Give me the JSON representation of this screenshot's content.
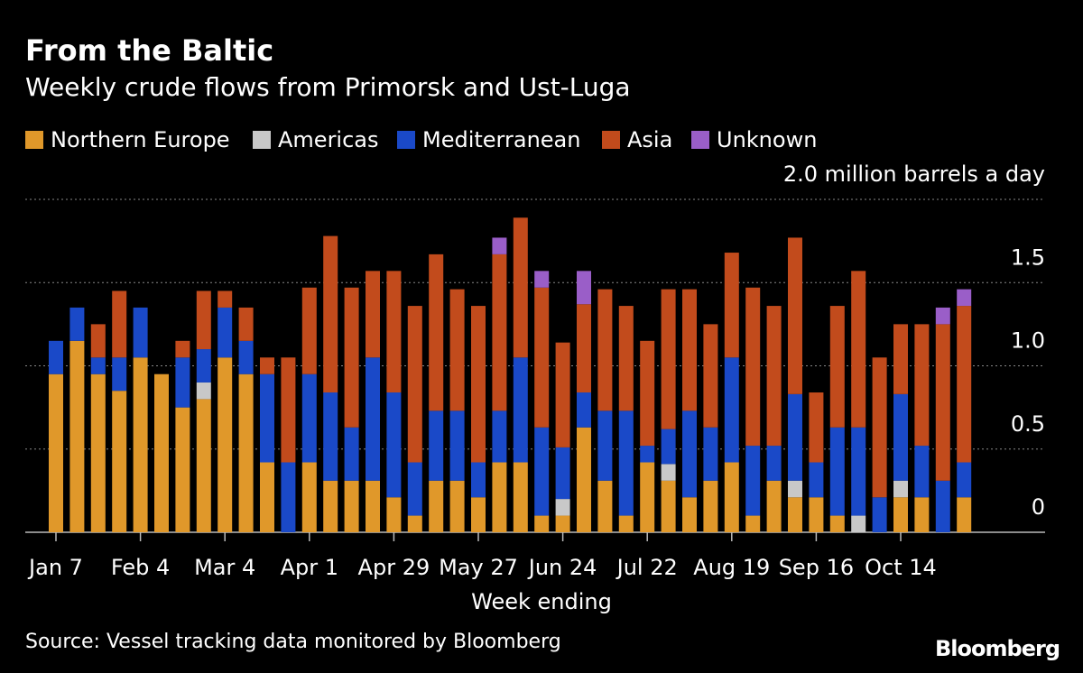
{
  "chart_data": {
    "type": "stacked_bar",
    "title": "From the Baltic",
    "subtitle": "Weekly crude flows from Primorsk and Ust-Luga",
    "x_label": "Week ending",
    "source": "Source: Vessel tracking data monitored by Bloomberg",
    "brand": "Bloomberg",
    "categories": [
      "Jan 7",
      null,
      null,
      null,
      "Feb 4",
      null,
      null,
      null,
      "Mar 4",
      null,
      null,
      null,
      "Apr 1",
      null,
      null,
      null,
      "Apr 29",
      null,
      null,
      null,
      "May 27",
      null,
      null,
      null,
      "Jun 24",
      null,
      null,
      null,
      "Jul 22",
      null,
      null,
      null,
      "Aug 19",
      null,
      null,
      null,
      "Sep 16",
      null,
      null,
      null,
      "Oct 14",
      null,
      null,
      null
    ],
    "series": [
      {
        "name": "Northern Europe",
        "color": "#e0982a",
        "values": [
          0.95,
          1.15,
          0.95,
          0.85,
          1.05,
          0.95,
          0.75,
          0.8,
          1.05,
          0.95,
          0.42,
          0,
          0.42,
          0.31,
          0.31,
          0.31,
          0.21,
          0.1,
          0.31,
          0.31,
          0.21,
          0.42,
          0.42,
          0.1,
          0.1,
          0.63,
          0.31,
          0.1,
          0.42,
          0.31,
          0.21,
          0.31,
          0.42,
          0.1,
          0.31,
          0.21,
          0.21,
          0.1,
          0,
          0,
          0.21,
          0.21,
          0,
          0.21
        ]
      },
      {
        "name": "Americas",
        "color": "#c8c8c8",
        "values": [
          0,
          0,
          0,
          0,
          0,
          0,
          0,
          0.1,
          0,
          0,
          0,
          0,
          0,
          0,
          0,
          0,
          0,
          0,
          0,
          0,
          0,
          0,
          0,
          0,
          0.1,
          0,
          0,
          0,
          0,
          0.1,
          0,
          0,
          0,
          0,
          0,
          0.1,
          0,
          0,
          0.1,
          0,
          0.1,
          0,
          0,
          0
        ]
      },
      {
        "name": "Mediterranean",
        "color": "#1a49c8",
        "values": [
          0.2,
          0.2,
          0.1,
          0.2,
          0.3,
          0,
          0.3,
          0.2,
          0.3,
          0.2,
          0.53,
          0.42,
          0.53,
          0.53,
          0.32,
          0.74,
          0.63,
          0.32,
          0.42,
          0.42,
          0.21,
          0.31,
          0.63,
          0.53,
          0.31,
          0.21,
          0.42,
          0.63,
          0.1,
          0.21,
          0.52,
          0.32,
          0.63,
          0.42,
          0.21,
          0.52,
          0.21,
          0.53,
          0.53,
          0.21,
          0.52,
          0.31,
          0.31,
          0.21
        ]
      },
      {
        "name": "Asia",
        "color": "#c24b1c",
        "values": [
          0,
          0,
          0.2,
          0.4,
          0,
          0,
          0.1,
          0.35,
          0.1,
          0.2,
          0.1,
          0.63,
          0.52,
          0.94,
          0.84,
          0.52,
          0.73,
          0.94,
          0.94,
          0.73,
          0.94,
          0.94,
          0.84,
          0.84,
          0.63,
          0.53,
          0.73,
          0.63,
          0.63,
          0.84,
          0.73,
          0.62,
          0.63,
          0.95,
          0.84,
          0.94,
          0.42,
          0.73,
          0.94,
          0.84,
          0.42,
          0.73,
          0.94,
          0.94
        ]
      },
      {
        "name": "Unknown",
        "color": "#9a5ec8",
        "values": [
          0,
          0,
          0,
          0,
          0,
          0,
          0,
          0,
          0,
          0,
          0,
          0,
          0,
          0,
          0,
          0,
          0,
          0,
          0,
          0,
          0,
          0.1,
          0,
          0.1,
          0,
          0.2,
          0,
          0,
          0,
          0,
          0,
          0,
          0,
          0,
          0,
          0,
          0,
          0,
          0,
          0,
          0,
          0,
          0.1,
          0.1
        ]
      }
    ],
    "ylim": [
      0,
      2
    ],
    "yticks": [
      0,
      0.5,
      {
        "value": 1,
        "label": "1.0"
      },
      1.5,
      {
        "value": 2,
        "label": "2.0 million barrels a day"
      }
    ],
    "grid": true
  }
}
